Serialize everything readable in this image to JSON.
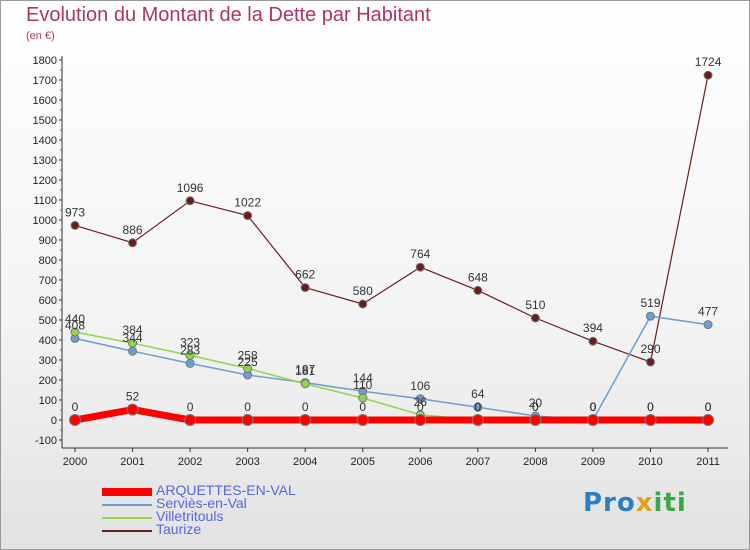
{
  "header": {
    "title": "Evolution du Montant de la Dette par Habitant",
    "subtitle": "(en €)"
  },
  "logo": {
    "part1": "Pro",
    "part2": "x",
    "part3": "iti"
  },
  "colors": {
    "ARQUETTES-EN-VAL": "#ff0000",
    "Serviès-en-Val": "#6a9fd4",
    "Villetritouls": "#8ed64a",
    "Taurize": "#6b1c1c"
  },
  "chart_data": {
    "type": "line",
    "title": "Evolution du Montant de la Dette par Habitant",
    "ylabel": "(en €)",
    "xlabel": "",
    "ylim": [
      -100,
      1800
    ],
    "yticks": [
      -100,
      0,
      100,
      200,
      300,
      400,
      500,
      600,
      700,
      800,
      900,
      1000,
      1100,
      1200,
      1300,
      1400,
      1500,
      1600,
      1700,
      1800
    ],
    "categories": [
      "2000",
      "2001",
      "2002",
      "2003",
      "2004",
      "2005",
      "2006",
      "2007",
      "2008",
      "2009",
      "2010",
      "2011"
    ],
    "grid": false,
    "legend_position": "bottom-left",
    "series": [
      {
        "name": "ARQUETTES-EN-VAL",
        "values": [
          0,
          52,
          0,
          0,
          0,
          0,
          0,
          0,
          0,
          0,
          0,
          0
        ]
      },
      {
        "name": "Serviès-en-Val",
        "values": [
          408,
          344,
          283,
          225,
          187,
          144,
          106,
          64,
          20,
          0,
          519,
          477
        ]
      },
      {
        "name": "Villetritouls",
        "values": [
          440,
          384,
          323,
          258,
          181,
          110,
          26,
          0,
          0,
          0,
          0,
          0
        ]
      },
      {
        "name": "Taurize",
        "values": [
          973,
          886,
          1096,
          1022,
          662,
          580,
          764,
          648,
          510,
          394,
          290,
          1724
        ]
      }
    ]
  }
}
